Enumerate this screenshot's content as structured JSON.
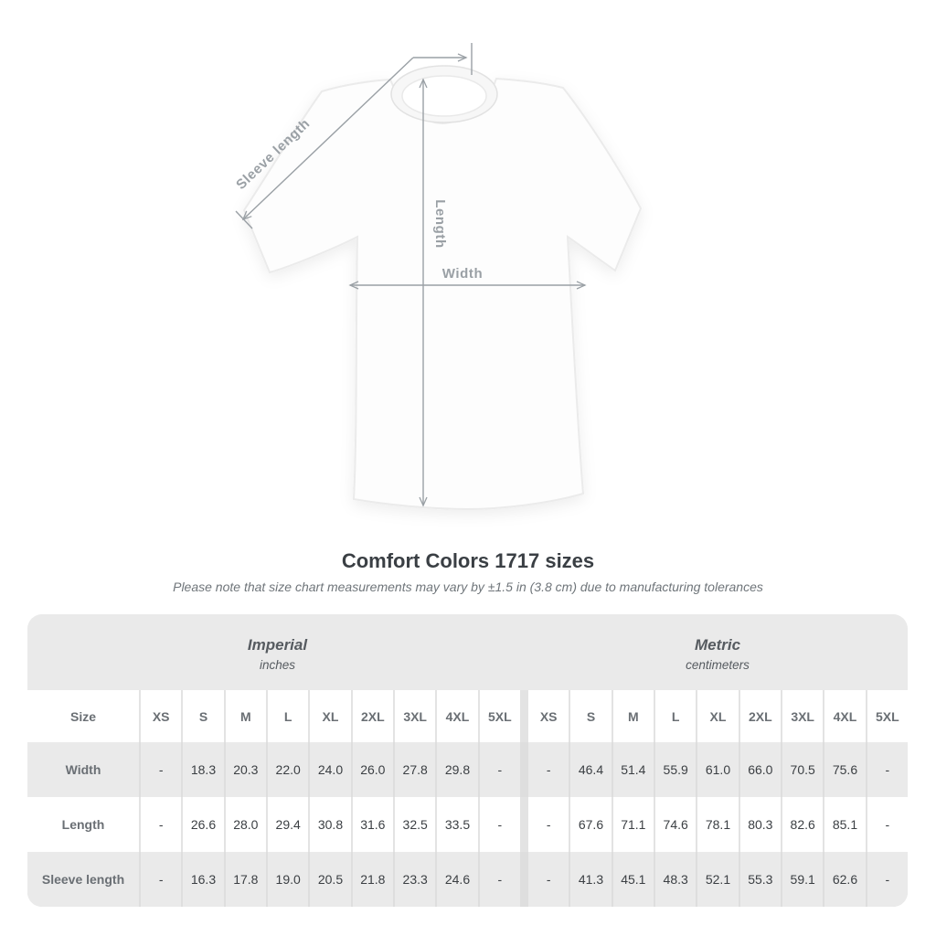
{
  "diagram": {
    "labels": {
      "sleeve_length": "Sleeve length",
      "length": "Length",
      "width": "Width"
    },
    "line_color": "#9aa0a5"
  },
  "title": "Comfort Colors 1717 sizes",
  "subtitle": "Please note that size chart measurements may vary by ±1.5 in (3.8 cm) due to manufacturing tolerances",
  "table": {
    "size_header": "Size",
    "groups": [
      {
        "name": "Imperial",
        "unit": "inches"
      },
      {
        "name": "Metric",
        "unit": "centimeters"
      }
    ],
    "sizes": [
      "XS",
      "S",
      "M",
      "L",
      "XL",
      "2XL",
      "3XL",
      "4XL",
      "5XL"
    ],
    "rows": [
      {
        "label": "Width",
        "imperial": [
          "-",
          "18.3",
          "20.3",
          "22.0",
          "24.0",
          "26.0",
          "27.8",
          "29.8",
          "-"
        ],
        "metric": [
          "-",
          "46.4",
          "51.4",
          "55.9",
          "61.0",
          "66.0",
          "70.5",
          "75.6",
          "-"
        ]
      },
      {
        "label": "Length",
        "imperial": [
          "-",
          "26.6",
          "28.0",
          "29.4",
          "30.8",
          "31.6",
          "32.5",
          "33.5",
          "-"
        ],
        "metric": [
          "-",
          "67.6",
          "71.1",
          "74.6",
          "78.1",
          "80.3",
          "82.6",
          "85.1",
          "-"
        ]
      },
      {
        "label": "Sleeve length",
        "imperial": [
          "-",
          "16.3",
          "17.8",
          "19.0",
          "20.5",
          "21.8",
          "23.3",
          "24.6",
          "-"
        ],
        "metric": [
          "-",
          "41.3",
          "45.1",
          "48.3",
          "52.1",
          "55.3",
          "59.1",
          "62.6",
          "-"
        ]
      }
    ]
  },
  "chart_data": {
    "type": "table",
    "title": "Comfort Colors 1717 sizes",
    "note": "Please note that size chart measurements may vary by ±1.5 in (3.8 cm) due to manufacturing tolerances",
    "column_groups": [
      "Imperial (inches)",
      "Metric (centimeters)"
    ],
    "columns": [
      "XS",
      "S",
      "M",
      "L",
      "XL",
      "2XL",
      "3XL",
      "4XL",
      "5XL"
    ],
    "rows": [
      {
        "label": "Width",
        "imperial_inches": [
          null,
          18.3,
          20.3,
          22.0,
          24.0,
          26.0,
          27.8,
          29.8,
          null
        ],
        "metric_cm": [
          null,
          46.4,
          51.4,
          55.9,
          61.0,
          66.0,
          70.5,
          75.6,
          null
        ]
      },
      {
        "label": "Length",
        "imperial_inches": [
          null,
          26.6,
          28.0,
          29.4,
          30.8,
          31.6,
          32.5,
          33.5,
          null
        ],
        "metric_cm": [
          null,
          67.6,
          71.1,
          74.6,
          78.1,
          80.3,
          82.6,
          85.1,
          null
        ]
      },
      {
        "label": "Sleeve length",
        "imperial_inches": [
          null,
          16.3,
          17.8,
          19.0,
          20.5,
          21.8,
          23.3,
          24.6,
          null
        ],
        "metric_cm": [
          null,
          41.3,
          45.1,
          48.3,
          52.1,
          55.3,
          59.1,
          62.6,
          null
        ]
      }
    ]
  },
  "colors": {
    "table_background": "#eaeaea",
    "annotation_gray": "#9aa0a5",
    "title_text": "#3a3f44",
    "value_text": "#3b3f43",
    "header_text": "#6a6f74"
  }
}
